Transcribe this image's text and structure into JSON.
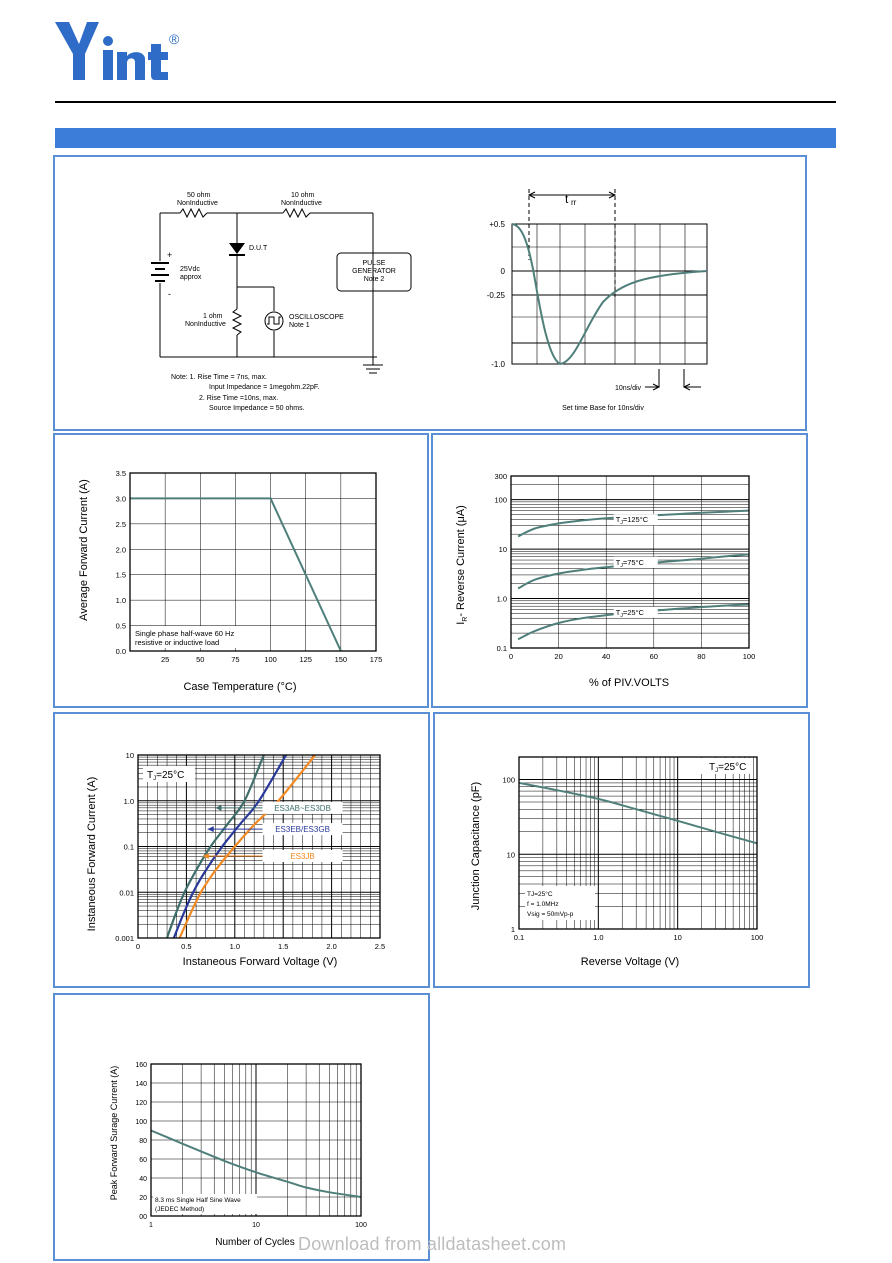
{
  "header": {
    "brand": "Yint",
    "registered": "®"
  },
  "circuit": {
    "r1_label": "50 ohm",
    "r1_sub": "NonInductive",
    "r2_label": "10 ohm",
    "r2_sub": "NonInductive",
    "dut": "D.U.T",
    "supply": "25Vdc",
    "supply_sub": "approx",
    "plus": "+",
    "minus": "-",
    "r3_label": "1 ohm",
    "r3_sub": "NonInductive",
    "scope": "OSCILLOSCOPE",
    "scope_note": "Note 1",
    "gen1": "PULSE",
    "gen2": "GENERATOR",
    "gen3": "Note 2",
    "notes": [
      "Note:  1. Rise Time = 7ns, max.",
      "Input Impedance = 1megohm.22pF.",
      "2. Rise Time =10ns, max.",
      "Source Impedance = 50 ohms."
    ],
    "trr": "t",
    "trr_sub": "rr",
    "y_ticks": [
      "+0.5",
      "0",
      "-0.25",
      "-1.0"
    ],
    "div_label": "10ns/div",
    "caption": "Set time Base for 10ns/div"
  },
  "chart_data": [
    {
      "type": "line",
      "title": "",
      "xlabel": "Case Temperature (°C)",
      "ylabel": "Average Forward Current  (A)",
      "xlim": [
        0,
        175
      ],
      "ylim": [
        0,
        3.5
      ],
      "x_ticks": [
        "25",
        "50",
        "75",
        "100",
        "125",
        "150",
        "175"
      ],
      "y_ticks": [
        "0.0",
        "0.5",
        "1.0",
        "1.5",
        "2.0",
        "2.5",
        "3.0",
        "3.5"
      ],
      "annotation": [
        "Single phase half-wave 60 Hz",
        "resistive or inductive load"
      ],
      "series": [
        {
          "x": [
            0,
            100,
            150
          ],
          "y": [
            3.0,
            3.0,
            0.0
          ]
        }
      ]
    },
    {
      "type": "line",
      "title": "",
      "xlabel": "% of PIV.VOLTS",
      "ylabel": "I",
      "ylabel_sub": "R",
      "ylabel_rest": "- Reverse Current (μA)",
      "y_scale": "log",
      "xlim": [
        0,
        100
      ],
      "ylim": [
        0.1,
        300
      ],
      "x_ticks": [
        "0",
        "20",
        "40",
        "60",
        "80",
        "100"
      ],
      "y_ticks": [
        "0.1",
        "1.0",
        "10",
        "100",
        "300"
      ],
      "series": [
        {
          "name": "TJ=125°C",
          "label_main": "T",
          "label_sub": "J",
          "label_rest": "=125°C",
          "label_at": [
            44,
            35
          ],
          "x": [
            3,
            10,
            20,
            30,
            40,
            50,
            60,
            70,
            80,
            90,
            100
          ],
          "y": [
            18,
            26,
            33,
            38,
            42,
            45,
            48,
            51,
            54,
            57,
            60
          ]
        },
        {
          "name": "TJ=75°C",
          "label_main": "T",
          "label_sub": "J",
          "label_rest": "=75°C",
          "label_at": [
            44,
            4.8
          ],
          "x": [
            3,
            10,
            20,
            30,
            40,
            50,
            60,
            70,
            80,
            90,
            100
          ],
          "y": [
            1.6,
            2.4,
            3.2,
            3.8,
            4.3,
            4.8,
            5.3,
            5.8,
            6.4,
            7.1,
            7.8
          ]
        },
        {
          "name": "TJ=25°C",
          "label_main": "T",
          "label_sub": "J",
          "label_rest": "=25°C",
          "label_at": [
            44,
            0.47
          ],
          "x": [
            3,
            10,
            20,
            30,
            40,
            50,
            60,
            70,
            80,
            90,
            100
          ],
          "y": [
            0.15,
            0.22,
            0.32,
            0.4,
            0.46,
            0.52,
            0.57,
            0.62,
            0.67,
            0.72,
            0.76
          ]
        }
      ]
    },
    {
      "type": "line",
      "title": "",
      "xlabel": "Instaneous Forward Voltage (V)",
      "ylabel": "Instaneous Forward Current (A)",
      "y_scale": "log",
      "xlim": [
        0,
        2.5
      ],
      "ylim": [
        0.001,
        10
      ],
      "x_ticks": [
        "0",
        "0.5",
        "1.0",
        "1.5",
        "2.0",
        "2.5"
      ],
      "y_ticks": [
        "0.001",
        "0.01",
        "0.1",
        "1.0",
        "10"
      ],
      "condition_main": "T",
      "condition_sub": "J",
      "condition_rest": "=25°C",
      "series": [
        {
          "name": "ES3AB~ES3DB",
          "color": "#3f6e6a",
          "x": [
            0.3,
            0.38,
            0.48,
            0.6,
            0.75,
            0.92,
            1.1,
            1.3
          ],
          "y": [
            0.001,
            0.003,
            0.01,
            0.03,
            0.1,
            0.3,
            1,
            10
          ]
        },
        {
          "name": "ES3EB/ES3GB",
          "color": "#2a3a9a",
          "x": [
            0.37,
            0.46,
            0.57,
            0.7,
            0.87,
            1.05,
            1.25,
            1.53
          ],
          "y": [
            0.001,
            0.003,
            0.01,
            0.03,
            0.1,
            0.3,
            1,
            10
          ]
        },
        {
          "name": "ES3JB",
          "color": "#f28a24",
          "x": [
            0.43,
            0.53,
            0.65,
            0.8,
            1.0,
            1.2,
            1.45,
            1.83
          ],
          "y": [
            0.001,
            0.003,
            0.01,
            0.03,
            0.1,
            0.3,
            1,
            10
          ]
        }
      ]
    },
    {
      "type": "line",
      "title": "",
      "xlabel": "Reverse  Voltage (V)",
      "ylabel": "Junction Capacitance (pF)",
      "x_scale": "log",
      "y_scale": "log",
      "xlim": [
        0.1,
        100
      ],
      "ylim": [
        1,
        200
      ],
      "x_ticks": [
        "0.1",
        "1.0",
        "10",
        "100"
      ],
      "y_ticks": [
        "1",
        "10",
        "100"
      ],
      "condition_main": "T",
      "condition_sub": "J",
      "condition_rest": "=25°C",
      "annotation": [
        "TJ=25°C",
        "f = 1.0MHz",
        "Vsig = 50mVp-p"
      ],
      "series": [
        {
          "x": [
            0.1,
            0.3,
            1,
            3,
            10,
            30,
            100
          ],
          "y": [
            90,
            72,
            55,
            40,
            28,
            20,
            14
          ]
        }
      ]
    },
    {
      "type": "line",
      "title": "",
      "xlabel": "Number of Cycles",
      "ylabel": "Peak Forward Surage Current (A)",
      "x_scale": "log",
      "xlim": [
        1,
        100
      ],
      "ylim": [
        0,
        160
      ],
      "x_ticks": [
        "1",
        "10",
        "100"
      ],
      "y_ticks": [
        "00",
        "20",
        "40",
        "60",
        "80",
        "100",
        "120",
        "140",
        "160"
      ],
      "annotation": [
        "8.3 ms Single Half Sine Wave",
        "(JEDEC Method)"
      ],
      "series": [
        {
          "x": [
            1,
            2,
            3,
            5,
            10,
            20,
            30,
            50,
            100
          ],
          "y": [
            90,
            76,
            68,
            58,
            46,
            36,
            30,
            25,
            20
          ]
        }
      ]
    }
  ],
  "watermark": "Download from alldatasheet.com",
  "colors": {
    "curve": "#4f7f7a",
    "grid": "#000",
    "panel_border": "#5a8fd6",
    "header_bar": "#3b7dd8",
    "logo": "#2f6cc8"
  }
}
